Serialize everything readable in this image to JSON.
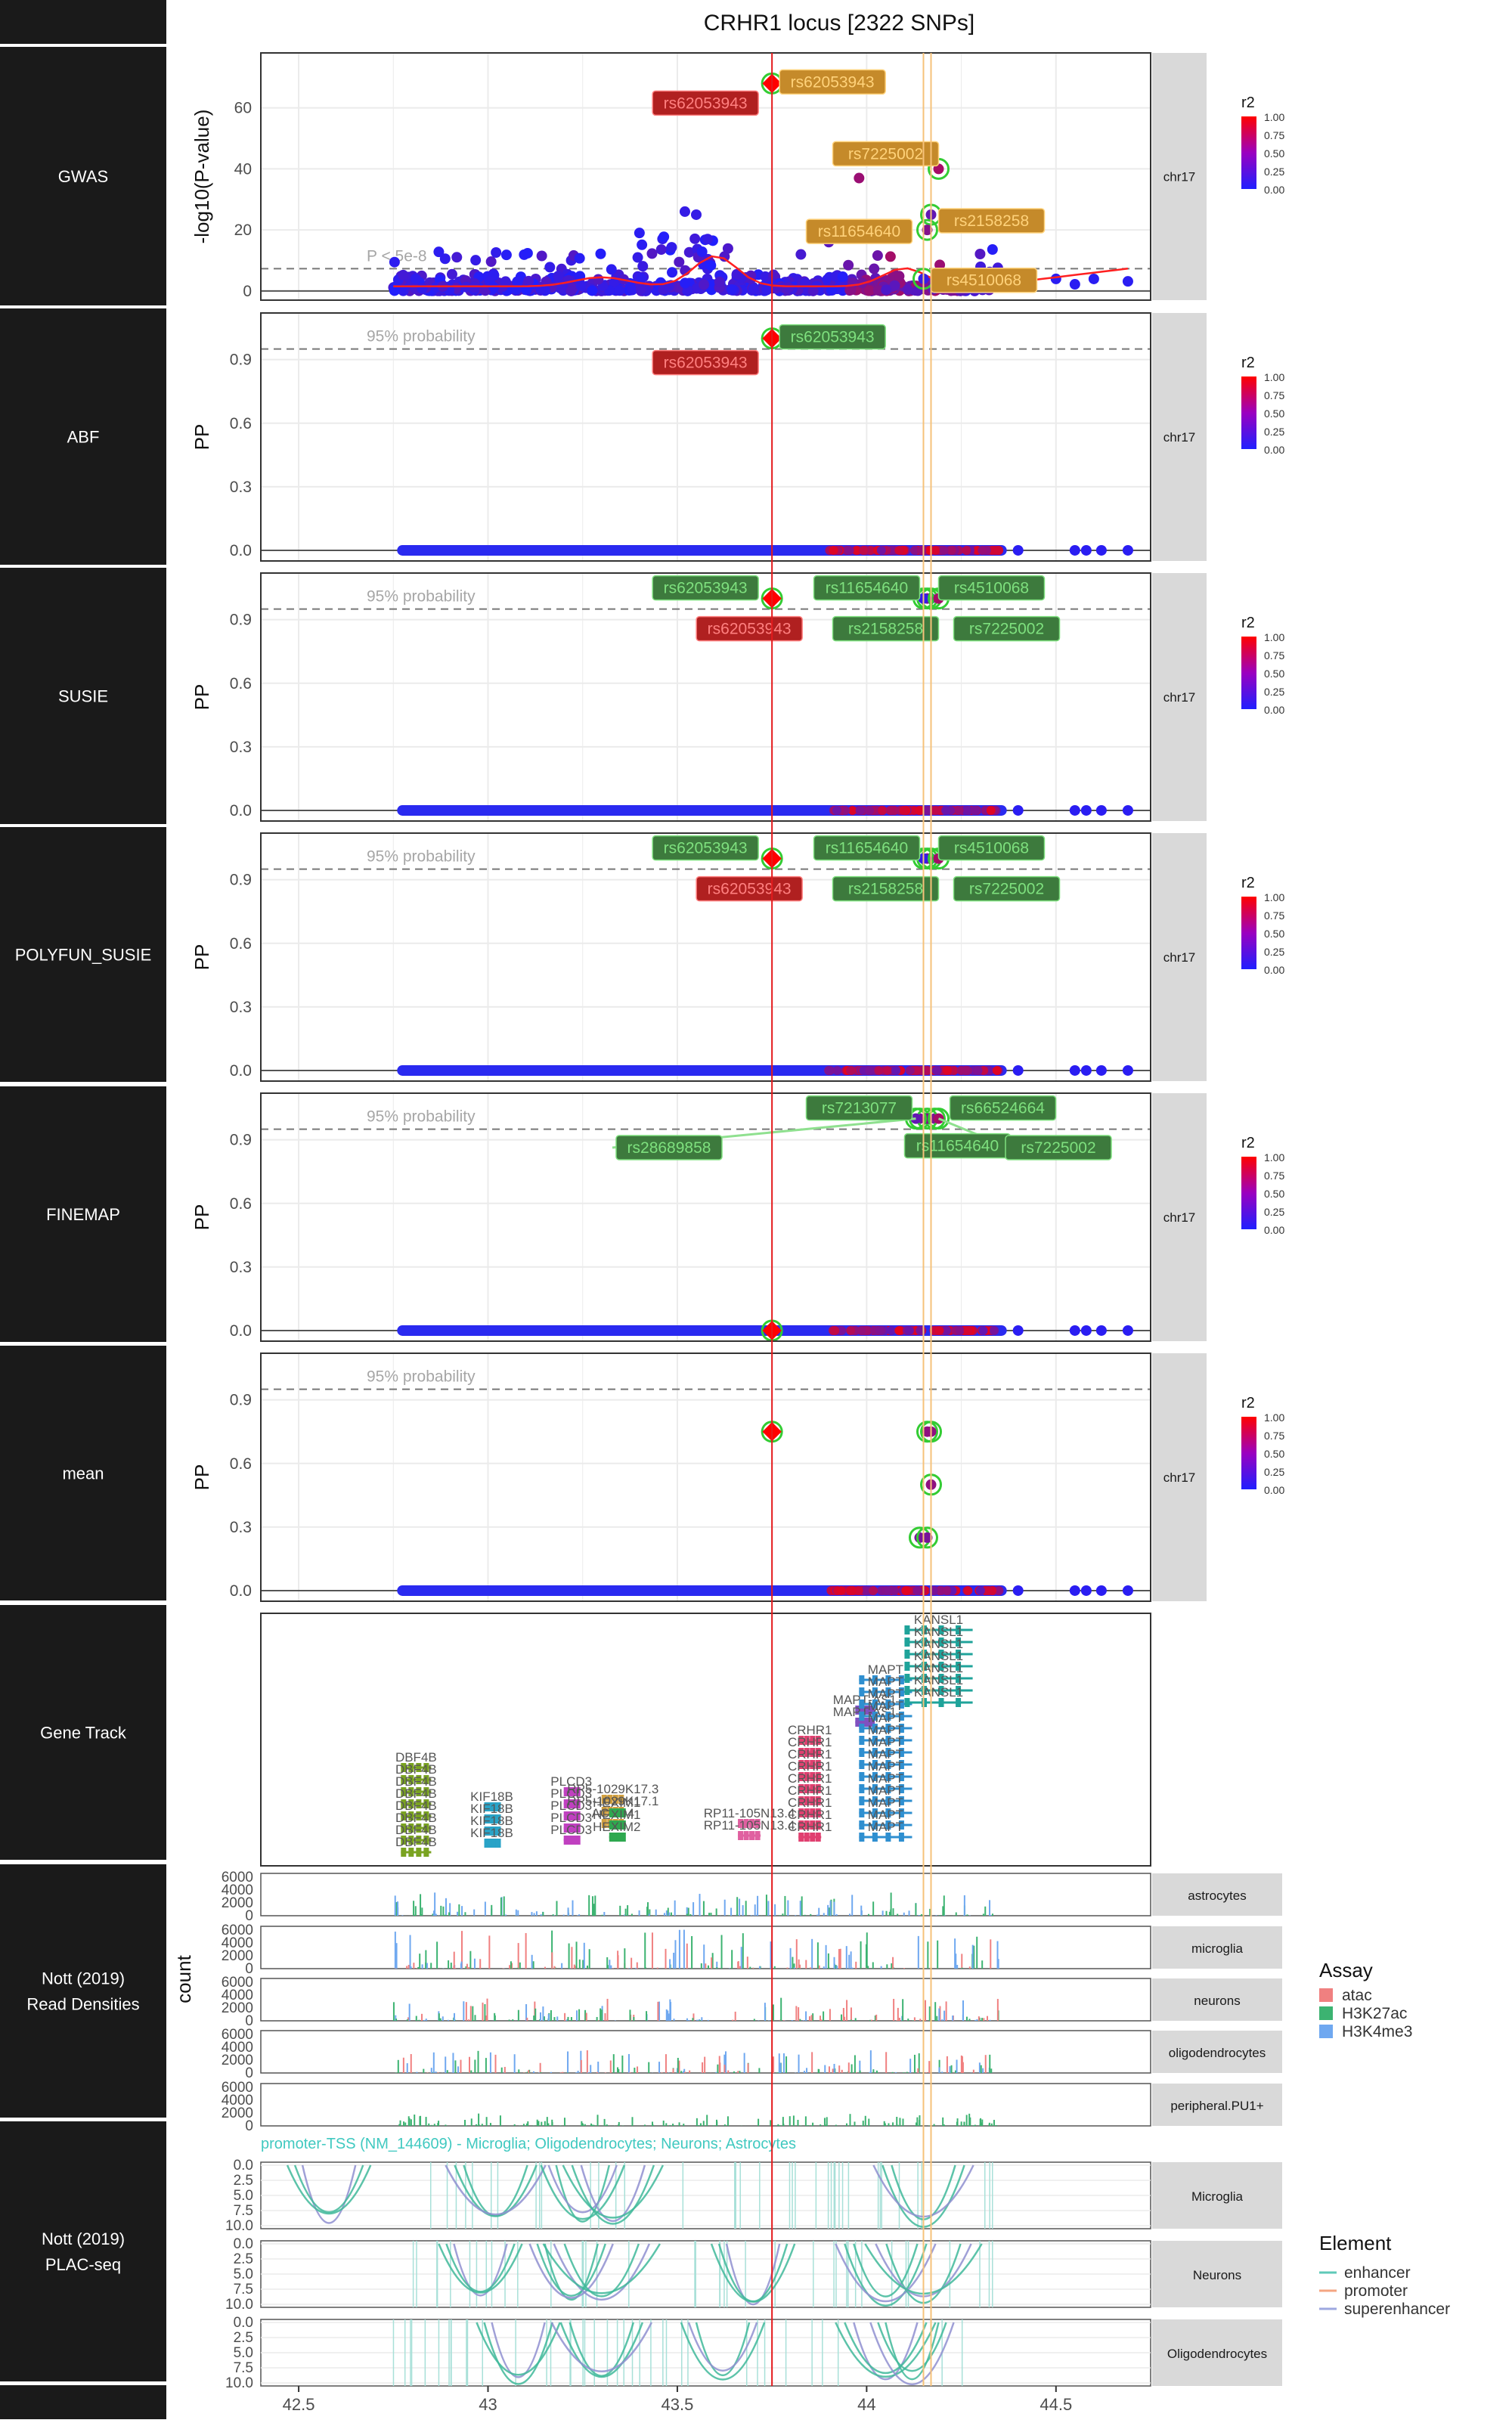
{
  "title": "CRHR1 locus [2322 SNPs]",
  "strip_label": "chr17",
  "xaxis_ticks": [
    "42.5",
    "43",
    "43.5",
    "44",
    "44.5"
  ],
  "colors": {
    "sidebar": "#1a1a1a",
    "panel_border": "#333333",
    "grid": "#ebebeb",
    "strip": "#d9d9d9",
    "lead_line": "#e41a1c",
    "consensus_line": "#f6c27a",
    "snp_low": "#1f1fff",
    "snp_high": "#ff0000",
    "label_orange": "#e6a23c",
    "label_green": "#3a8c3a",
    "label_red": "#cc2222"
  },
  "legend_r2": {
    "title": "r2",
    "ticks": [
      "1.00",
      "0.75",
      "0.50",
      "0.25",
      "0.00"
    ]
  },
  "tracks": [
    {
      "label": "GWAS",
      "ylabel": "-log10(P-value)",
      "yticks": [
        "0",
        "20",
        "40",
        "60"
      ],
      "threshold_label": "P < 5e-8"
    },
    {
      "label": "ABF",
      "ylabel": "PP",
      "yticks": [
        "0.0",
        "0.3",
        "0.6",
        "0.9"
      ],
      "threshold_label": "95% probability"
    },
    {
      "label": "SUSIE",
      "ylabel": "PP",
      "yticks": [
        "0.0",
        "0.3",
        "0.6",
        "0.9"
      ],
      "threshold_label": "95% probability"
    },
    {
      "label": "POLYFUN_SUSIE",
      "ylabel": "PP",
      "yticks": [
        "0.0",
        "0.3",
        "0.6",
        "0.9"
      ],
      "threshold_label": "95% probability"
    },
    {
      "label": "FINEMAP",
      "ylabel": "PP",
      "yticks": [
        "0.0",
        "0.3",
        "0.6",
        "0.9"
      ],
      "threshold_label": "95% probability"
    },
    {
      "label": "mean",
      "ylabel": "PP",
      "yticks": [
        "0.0",
        "0.3",
        "0.6",
        "0.9"
      ],
      "threshold_label": "95% probability"
    },
    {
      "label": "Gene Track"
    },
    {
      "label": "Nott (2019)\nRead Densities"
    },
    {
      "label": "Nott (2019)\nPLAC-seq"
    }
  ],
  "read_density": {
    "ylabel": "count",
    "yticks": [
      "0",
      "2000",
      "4000",
      "6000"
    ],
    "cell_types": [
      "astrocytes",
      "microglia",
      "neurons",
      "oligodendrocytes",
      "peripheral.PU1+"
    ],
    "legend_title": "Assay",
    "legend_items": [
      {
        "label": "atac",
        "color": "#f08080"
      },
      {
        "label": "H3K27ac",
        "color": "#3cb371"
      },
      {
        "label": "H3K4me3",
        "color": "#6fa8f0"
      }
    ]
  },
  "plac_seq": {
    "annotation": "promoter-TSS (NM_144609) - Microglia; Oligodendrocytes; Neurons; Astrocytes",
    "yticks": [
      "0.0",
      "2.5",
      "5.0",
      "7.5",
      "10.0"
    ],
    "cell_types": [
      "Microglia",
      "Neurons",
      "Oligodendrocytes"
    ],
    "legend_title": "Element",
    "legend_items": [
      {
        "label": "enhancer",
        "color": "#5fc9b8"
      },
      {
        "label": "promoter",
        "color": "#f4a582"
      },
      {
        "label": "superenhancer",
        "color": "#9ea8e0"
      }
    ]
  },
  "genes": {
    "DBF4B": [
      "DBF4B",
      "DBF4B",
      "DBF4B",
      "DBF4B",
      "DBF4B",
      "DBF4B",
      "DBF4B",
      "DBF4B"
    ],
    "KIF18B": [
      "KIF18B",
      "KIF18B",
      "KIF18B",
      "KIF18B"
    ],
    "PLCD3": [
      "PLCD3",
      "PLCD3",
      "PLCD3",
      "PLCD3",
      "PLCD3"
    ],
    "AC": [
      "RP5-1029K17.3",
      "RP5-1029K17.1",
      "ACBD4"
    ],
    "HEXIM": [
      "HEXIM1",
      "HEXIM1",
      "HEXIM2"
    ],
    "CRHR1": [
      "CRHR1",
      "CRHR1",
      "CRHR1",
      "CRHR1",
      "CRHR1",
      "CRHR1",
      "CRHR1",
      "CRHR1",
      "CRHR1"
    ],
    "RP11": [
      "RP11-105N13.4",
      "RP11-105N13.4"
    ],
    "MAPT_AS": [
      "MAPT-AS1",
      "MAPT-AS1"
    ],
    "MAPT": [
      "MAPT",
      "MAPT",
      "MAPT",
      "MAPT",
      "MAPT",
      "MAPT",
      "MAPT",
      "MAPT",
      "MAPT",
      "MAPT",
      "MAPT",
      "MAPT",
      "MAPT",
      "MAPT"
    ],
    "KANSL1": [
      "KANSL1",
      "KANSL1",
      "KANSL1",
      "KANSL1",
      "KANSL1",
      "KANSL1",
      "KANSL1"
    ]
  },
  "chart_data": [
    {
      "type": "scatter",
      "title": "GWAS",
      "ylabel": "-log10(P-value)",
      "xlim": [
        42.4,
        44.75
      ],
      "ylim": [
        -3,
        78
      ],
      "threshold": 7.3,
      "lead_x": 43.75,
      "consensus_x": [
        44.15,
        44.17
      ],
      "points": [
        {
          "x": 43.75,
          "y": 68,
          "r2": 1.0,
          "label": "rs62053943"
        },
        {
          "x": 44.19,
          "y": 40,
          "r2": 0.6,
          "label": "rs7225002"
        },
        {
          "x": 44.17,
          "y": 25,
          "r2": 0.3,
          "label": "rs2158258"
        },
        {
          "x": 44.16,
          "y": 20,
          "r2": 0.45,
          "label": "rs11654640"
        },
        {
          "x": 44.15,
          "y": 4,
          "r2": 0.1,
          "label": "rs4510068"
        },
        {
          "x": 43.52,
          "y": 26,
          "r2": 0.1
        },
        {
          "x": 43.55,
          "y": 25,
          "r2": 0.1
        },
        {
          "x": 43.4,
          "y": 19,
          "r2": 0.05
        },
        {
          "x": 43.58,
          "y": 17,
          "r2": 0.1
        },
        {
          "x": 43.9,
          "y": 16,
          "r2": 0.25
        },
        {
          "x": 43.98,
          "y": 37,
          "r2": 0.55
        }
      ]
    },
    {
      "type": "scatter",
      "title": "ABF",
      "ylabel": "PP",
      "ylim": [
        -0.05,
        1.12
      ],
      "threshold": 0.95,
      "points": [
        {
          "x": 43.75,
          "y": 1.0,
          "r2": 1.0,
          "label": "rs62053943"
        }
      ]
    },
    {
      "type": "scatter",
      "title": "SUSIE",
      "ylabel": "PP",
      "ylim": [
        -0.05,
        1.12
      ],
      "threshold": 0.95,
      "points": [
        {
          "x": 43.75,
          "y": 1.0,
          "r2": 1.0,
          "label": "rs62053943"
        },
        {
          "x": 44.16,
          "y": 1.0,
          "r2": 0.45,
          "label": "rs11654640"
        },
        {
          "x": 44.17,
          "y": 1.0,
          "r2": 0.3,
          "label": "rs2158258"
        },
        {
          "x": 44.15,
          "y": 1.0,
          "r2": 0.1,
          "label": "rs4510068"
        },
        {
          "x": 44.19,
          "y": 1.0,
          "r2": 0.6,
          "label": "rs7225002"
        }
      ]
    },
    {
      "type": "scatter",
      "title": "POLYFUN_SUSIE",
      "ylabel": "PP",
      "ylim": [
        -0.05,
        1.12
      ],
      "threshold": 0.95,
      "points": [
        {
          "x": 43.75,
          "y": 1.0,
          "r2": 1.0,
          "label": "rs62053943"
        },
        {
          "x": 44.16,
          "y": 1.0,
          "r2": 0.45,
          "label": "rs11654640"
        },
        {
          "x": 44.17,
          "y": 1.0,
          "r2": 0.3,
          "label": "rs2158258"
        },
        {
          "x": 44.15,
          "y": 1.0,
          "r2": 0.1,
          "label": "rs4510068"
        },
        {
          "x": 44.19,
          "y": 1.0,
          "r2": 0.6,
          "label": "rs7225002"
        }
      ]
    },
    {
      "type": "scatter",
      "title": "FINEMAP",
      "ylabel": "PP",
      "ylim": [
        -0.05,
        1.12
      ],
      "threshold": 0.95,
      "points": [
        {
          "x": 44.14,
          "y": 1.0,
          "r2": 0.4,
          "label": "rs7213077"
        },
        {
          "x": 44.18,
          "y": 1.0,
          "r2": 0.4,
          "label": "rs66524664"
        },
        {
          "x": 44.16,
          "y": 1.0,
          "r2": 0.45,
          "label": "rs11654640"
        },
        {
          "x": 44.13,
          "y": 1.0,
          "r2": 0.3,
          "label": "rs28689858"
        },
        {
          "x": 44.19,
          "y": 1.0,
          "r2": 0.6,
          "label": "rs7225002"
        },
        {
          "x": 43.75,
          "y": 0.0,
          "r2": 1.0
        }
      ]
    },
    {
      "type": "scatter",
      "title": "mean",
      "ylabel": "PP",
      "ylim": [
        -0.05,
        1.12
      ],
      "threshold": 0.95,
      "points": [
        {
          "x": 43.75,
          "y": 0.75,
          "r2": 1.0
        },
        {
          "x": 44.16,
          "y": 0.75,
          "r2": 0.5
        },
        {
          "x": 44.17,
          "y": 0.75,
          "r2": 0.5
        },
        {
          "x": 44.17,
          "y": 0.5,
          "r2": 0.5
        },
        {
          "x": 44.14,
          "y": 0.25,
          "r2": 0.4
        },
        {
          "x": 44.16,
          "y": 0.25,
          "r2": 0.4
        }
      ]
    }
  ]
}
